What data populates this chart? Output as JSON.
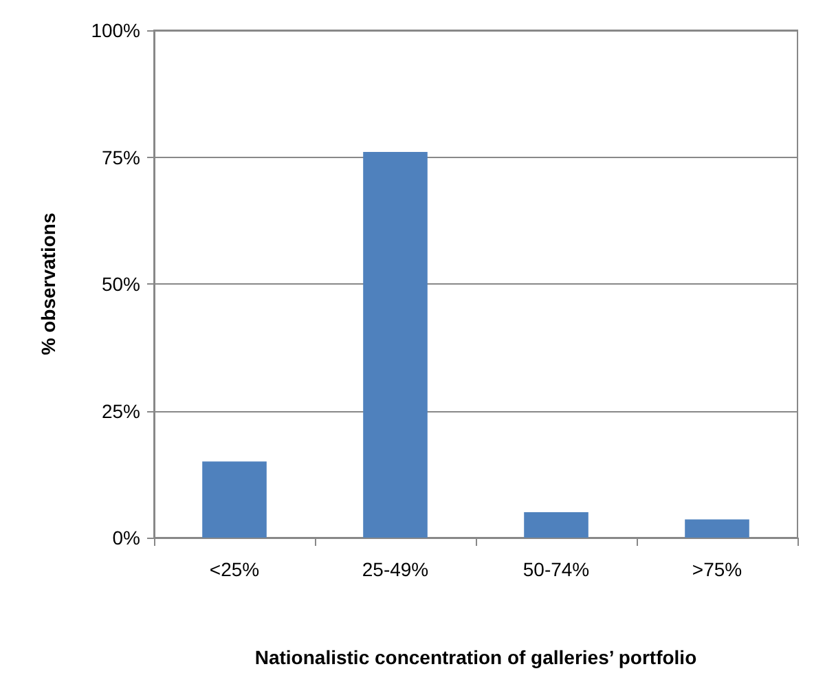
{
  "chart_data": {
    "type": "bar",
    "xlabel": "Nationalistic concentration of galleries’ portfolio",
    "ylabel": "% observations",
    "categories": [
      "<25%",
      "25-49%",
      "50-74%",
      ">75%"
    ],
    "values": [
      15,
      76,
      5,
      3.6
    ],
    "color": "#4f81bd",
    "ylim": [
      0,
      100
    ],
    "yticks": [
      {
        "value": 0,
        "label": "0%"
      },
      {
        "value": 25,
        "label": "25%"
      },
      {
        "value": 50,
        "label": "50%"
      },
      {
        "value": 75,
        "label": "75%"
      },
      {
        "value": 100,
        "label": "100%"
      }
    ],
    "grid": "y"
  }
}
